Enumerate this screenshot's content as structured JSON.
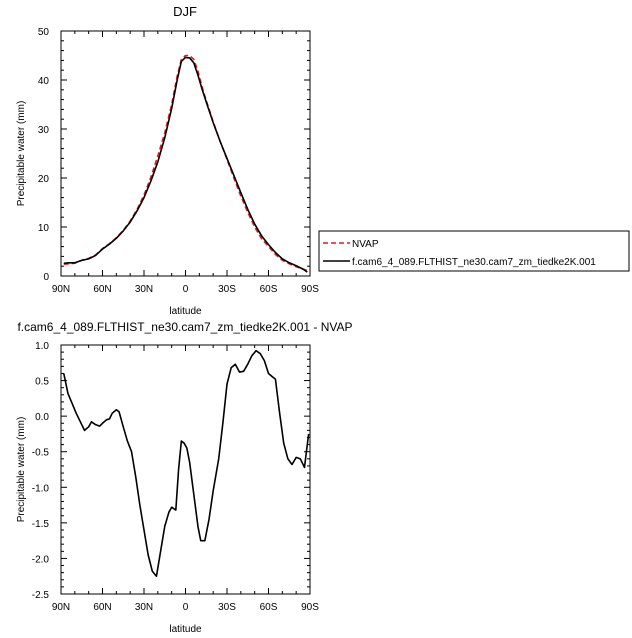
{
  "chart_data": [
    {
      "type": "line",
      "title": "DJF",
      "xlabel": "latitude",
      "ylabel": "Precipitable water (mm)",
      "xlim": [
        90,
        -90
      ],
      "ylim": [
        0,
        50
      ],
      "x_ticks": [
        90,
        60,
        30,
        0,
        -30,
        -60,
        -90
      ],
      "x_tick_labels": [
        "90N",
        "60N",
        "30N",
        "0",
        "30S",
        "60S",
        "90S"
      ],
      "y_ticks": [
        0,
        10,
        20,
        30,
        40,
        50
      ],
      "y_tick_labels": [
        "0",
        "10",
        "20",
        "30",
        "40",
        "50"
      ],
      "legend_position": "right",
      "series": [
        {
          "name": "NVAP",
          "color": "#e41a1c",
          "dash": "dashed",
          "points": [
            [
              88,
              2.4
            ],
            [
              84,
              2.5
            ],
            [
              80,
              2.6
            ],
            [
              75,
              3.2
            ],
            [
              70,
              3.6
            ],
            [
              65,
              4.3
            ],
            [
              60,
              5.6
            ],
            [
              55,
              6.6
            ],
            [
              50,
              7.8
            ],
            [
              45,
              9.3
            ],
            [
              40,
              11.2
            ],
            [
              35,
              13.6
            ],
            [
              30,
              16.5
            ],
            [
              25,
              20.2
            ],
            [
              20,
              24.5
            ],
            [
              15,
              29.2
            ],
            [
              10,
              35.0
            ],
            [
              6,
              40.8
            ],
            [
              3,
              44.2
            ],
            [
              0,
              45.0
            ],
            [
              -3,
              45.0
            ],
            [
              -6,
              44.2
            ],
            [
              -9,
              41.8
            ],
            [
              -12,
              38.6
            ],
            [
              -15,
              35.8
            ],
            [
              -20,
              31.5
            ],
            [
              -25,
              27.5
            ],
            [
              -30,
              23.8
            ],
            [
              -35,
              20.0
            ],
            [
              -40,
              16.3
            ],
            [
              -45,
              13.0
            ],
            [
              -50,
              10.0
            ],
            [
              -55,
              7.6
            ],
            [
              -60,
              6.0
            ],
            [
              -65,
              4.4
            ],
            [
              -70,
              3.2
            ],
            [
              -75,
              2.5
            ],
            [
              -80,
              1.9
            ],
            [
              -85,
              1.4
            ],
            [
              -88,
              1.1
            ]
          ]
        },
        {
          "name": "f.cam6_4_089.FLTHIST_ne30.cam7_zm_tiedke2K.001",
          "color": "#000000",
          "dash": "solid",
          "points": [
            [
              88,
              2.6
            ],
            [
              84,
              2.7
            ],
            [
              80,
              2.7
            ],
            [
              75,
              3.2
            ],
            [
              70,
              3.5
            ],
            [
              65,
              4.2
            ],
            [
              60,
              5.5
            ],
            [
              55,
              6.5
            ],
            [
              50,
              7.7
            ],
            [
              45,
              9.2
            ],
            [
              40,
              11.0
            ],
            [
              35,
              13.3
            ],
            [
              30,
              16.0
            ],
            [
              25,
              19.4
            ],
            [
              20,
              23.3
            ],
            [
              15,
              28.2
            ],
            [
              10,
              34.2
            ],
            [
              6,
              40.0
            ],
            [
              3,
              43.8
            ],
            [
              0,
              44.6
            ],
            [
              -3,
              44.5
            ],
            [
              -6,
              43.5
            ],
            [
              -9,
              41.0
            ],
            [
              -12,
              38.1
            ],
            [
              -15,
              35.5
            ],
            [
              -20,
              31.3
            ],
            [
              -25,
              27.5
            ],
            [
              -30,
              24.0
            ],
            [
              -35,
              20.5
            ],
            [
              -40,
              17.0
            ],
            [
              -45,
              13.6
            ],
            [
              -50,
              10.6
            ],
            [
              -55,
              8.2
            ],
            [
              -60,
              6.4
            ],
            [
              -65,
              4.8
            ],
            [
              -70,
              3.5
            ],
            [
              -75,
              2.7
            ],
            [
              -80,
              2.1
            ],
            [
              -85,
              1.4
            ],
            [
              -88,
              0.8
            ]
          ]
        }
      ]
    },
    {
      "type": "line",
      "title": "f.cam6_4_089.FLTHIST_ne30.cam7_zm_tiedke2K.001 - NVAP",
      "xlabel": "latitude",
      "ylabel": "Precipitable water (mm)",
      "xlim": [
        90,
        -90
      ],
      "ylim": [
        -2.5,
        1.0
      ],
      "x_ticks": [
        90,
        60,
        30,
        0,
        -30,
        -60,
        -90
      ],
      "x_tick_labels": [
        "90N",
        "60N",
        "30N",
        "0",
        "30S",
        "60S",
        "90S"
      ],
      "y_ticks": [
        -2.5,
        -2.0,
        -1.5,
        -1.0,
        -0.5,
        0.0,
        0.5,
        1.0
      ],
      "y_tick_labels": [
        "-2.5",
        "-2.0",
        "-1.5",
        "-1.0",
        "-0.5",
        "0.0",
        "0.5",
        "1.0"
      ],
      "series": [
        {
          "name": "",
          "color": "#000000",
          "dash": "solid",
          "points": [
            [
              88,
              0.6
            ],
            [
              85,
              0.32
            ],
            [
              82,
              0.18
            ],
            [
              79,
              0.04
            ],
            [
              76,
              -0.08
            ],
            [
              73,
              -0.2
            ],
            [
              70,
              -0.15
            ],
            [
              68,
              -0.08
            ],
            [
              65,
              -0.12
            ],
            [
              62,
              -0.14
            ],
            [
              60,
              -0.1
            ],
            [
              57,
              -0.05
            ],
            [
              55,
              -0.04
            ],
            [
              53,
              0.04
            ],
            [
              50,
              0.09
            ],
            [
              48,
              0.06
            ],
            [
              45,
              -0.15
            ],
            [
              42,
              -0.35
            ],
            [
              39,
              -0.5
            ],
            [
              36,
              -0.85
            ],
            [
              33,
              -1.25
            ],
            [
              30,
              -1.6
            ],
            [
              27,
              -1.95
            ],
            [
              24,
              -2.18
            ],
            [
              21,
              -2.25
            ],
            [
              18,
              -1.9
            ],
            [
              15,
              -1.55
            ],
            [
              12,
              -1.35
            ],
            [
              10,
              -1.28
            ],
            [
              7,
              -1.32
            ],
            [
              5,
              -0.75
            ],
            [
              3,
              -0.35
            ],
            [
              1,
              -0.38
            ],
            [
              -1,
              -0.45
            ],
            [
              -3,
              -0.65
            ],
            [
              -6,
              -1.1
            ],
            [
              -9,
              -1.55
            ],
            [
              -11,
              -1.75
            ],
            [
              -14,
              -1.75
            ],
            [
              -17,
              -1.45
            ],
            [
              -20,
              -1.05
            ],
            [
              -24,
              -0.6
            ],
            [
              -27,
              -0.1
            ],
            [
              -30,
              0.45
            ],
            [
              -33,
              0.68
            ],
            [
              -36,
              0.73
            ],
            [
              -39,
              0.62
            ],
            [
              -42,
              0.63
            ],
            [
              -45,
              0.73
            ],
            [
              -48,
              0.85
            ],
            [
              -51,
              0.92
            ],
            [
              -54,
              0.88
            ],
            [
              -57,
              0.78
            ],
            [
              -60,
              0.6
            ],
            [
              -63,
              0.55
            ],
            [
              -65,
              0.52
            ],
            [
              -68,
              0.05
            ],
            [
              -71,
              -0.38
            ],
            [
              -74,
              -0.6
            ],
            [
              -77,
              -0.68
            ],
            [
              -80,
              -0.58
            ],
            [
              -83,
              -0.6
            ],
            [
              -86,
              -0.72
            ],
            [
              -89,
              -0.25
            ]
          ]
        }
      ]
    }
  ]
}
